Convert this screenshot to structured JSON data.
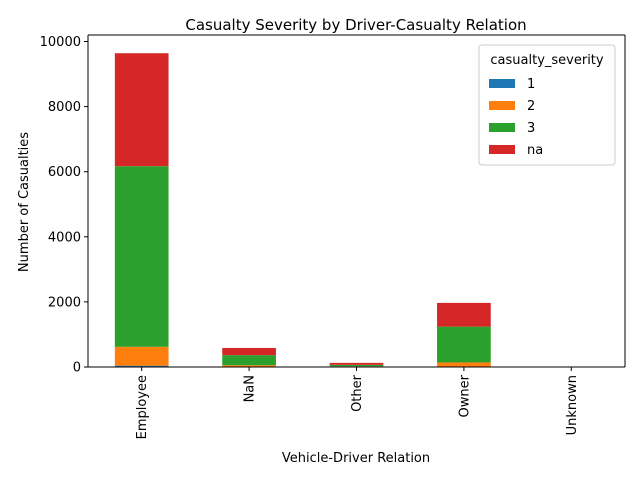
{
  "chart_data": {
    "type": "bar",
    "stacked": true,
    "title": "Casualty Severity by Driver-Casualty Relation",
    "xlabel": "Vehicle-Driver Relation",
    "ylabel": "Number of Casualties",
    "categories": [
      "Employee",
      "NaN",
      "Other",
      "Owner",
      "Unknown"
    ],
    "ylim": [
      0,
      10200
    ],
    "yticks": [
      0,
      2000,
      4000,
      6000,
      8000,
      10000
    ],
    "legend": {
      "title": "casualty_severity",
      "placement": "top-right"
    },
    "series": [
      {
        "name": "1",
        "color": "#1f77b4",
        "values": [
          40,
          5,
          2,
          10,
          0
        ]
      },
      {
        "name": "2",
        "color": "#ff7f0e",
        "values": [
          580,
          50,
          20,
          130,
          0
        ]
      },
      {
        "name": "3",
        "color": "#2ca02c",
        "values": [
          5550,
          310,
          45,
          1100,
          0
        ]
      },
      {
        "name": "na",
        "color": "#d62728",
        "values": [
          3470,
          220,
          60,
          730,
          0
        ]
      }
    ]
  }
}
